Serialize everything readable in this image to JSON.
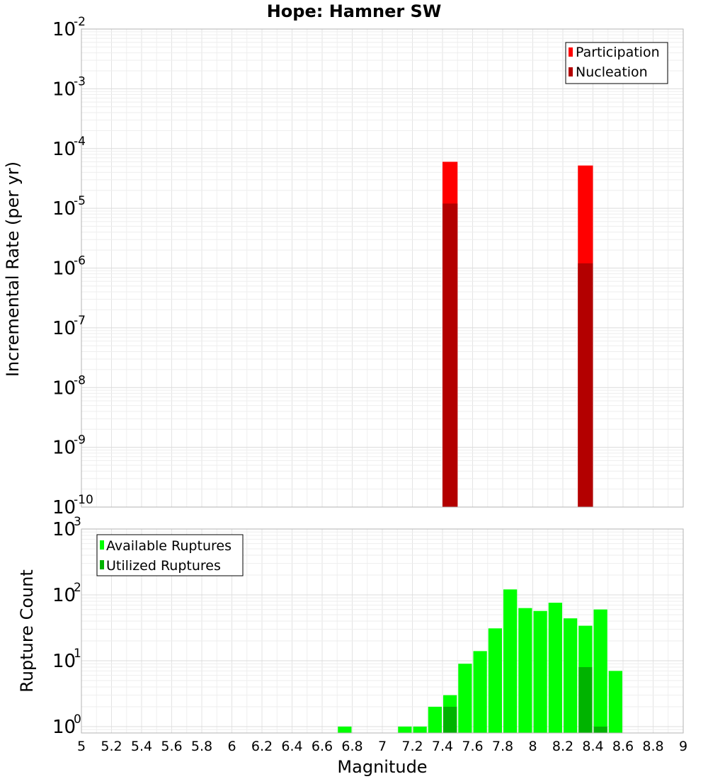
{
  "chart_data": [
    {
      "type": "bar",
      "title": "Hope: Hamner SW",
      "xlabel": "Magnitude",
      "ylabel": "Incremental Rate (per yr)",
      "yscale": "log",
      "xlim": [
        5,
        9
      ],
      "ylim": [
        1e-10,
        0.01
      ],
      "bin_width": 0.1,
      "ytick_exponents": [
        "-2",
        "-3",
        "-4",
        "-5",
        "-6",
        "-7",
        "-8",
        "-9",
        "-10"
      ],
      "legend": {
        "position": "top-right"
      },
      "series": [
        {
          "name": "Participation",
          "color": "#ff0000",
          "x": [
            7.45,
            8.35
          ],
          "values": [
            6e-05,
            5.2e-05
          ]
        },
        {
          "name": "Nucleation",
          "color": "#b30000",
          "x": [
            7.45,
            8.35
          ],
          "values": [
            1.2e-05,
            1.2e-06
          ]
        }
      ]
    },
    {
      "type": "bar",
      "title": "",
      "xlabel": "Magnitude",
      "ylabel": "Rupture Count",
      "yscale": "log",
      "xlim": [
        5,
        9
      ],
      "ylim": [
        0.8,
        1000
      ],
      "bin_width": 0.1,
      "ytick_exponents": [
        "3",
        "2",
        "1",
        "0"
      ],
      "xticks": [
        "5",
        "5.2",
        "5.4",
        "5.6",
        "5.8",
        "6",
        "6.2",
        "6.4",
        "6.6",
        "6.8",
        "7",
        "7.2",
        "7.4",
        "7.6",
        "7.8",
        "8",
        "8.2",
        "8.4",
        "8.6",
        "8.8",
        "9"
      ],
      "legend": {
        "position": "top-left"
      },
      "series": [
        {
          "name": "Available Ruptures",
          "color": "#00ff00",
          "x": [
            6.75,
            7.15,
            7.25,
            7.35,
            7.45,
            7.55,
            7.65,
            7.75,
            7.85,
            7.95,
            8.05,
            8.15,
            8.25,
            8.35,
            8.45,
            8.55
          ],
          "values": [
            1,
            1,
            1,
            2,
            3,
            9,
            14,
            31,
            121,
            63,
            57,
            76,
            44,
            34,
            60,
            7
          ]
        },
        {
          "name": "Utilized Ruptures",
          "color": "#00b300",
          "x": [
            7.45,
            8.35,
            8.45
          ],
          "values": [
            2,
            8,
            1
          ]
        }
      ]
    }
  ]
}
